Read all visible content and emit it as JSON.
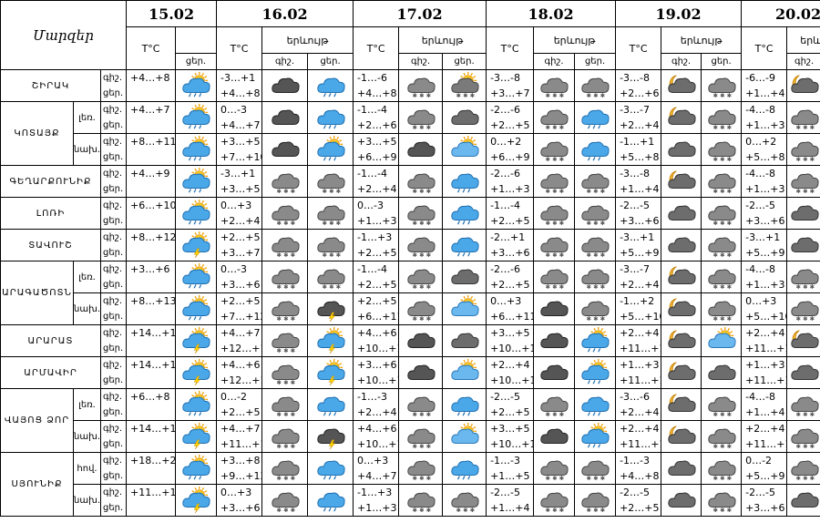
{
  "header": {
    "region_col": "Մարզեր",
    "temp_label": "T°C",
    "weather_label": "երևույթ",
    "night_short": "գիշ.",
    "day_short": "ցեր.",
    "dates": [
      "15.02",
      "16.02",
      "17.02",
      "18.02",
      "19.02",
      "20.02"
    ]
  },
  "rows": [
    {
      "region": "ՇԻՐԱԿ",
      "sub": "",
      "labels": [
        "գիշ.",
        "ցեր."
      ],
      "t15": [
        "",
        "+4…+8"
      ],
      "i15": "sun-cloud-rain-icon",
      "days": [
        {
          "t": [
            "-3…+1",
            "+4…+8"
          ],
          "n": "dark-cloud-icon",
          "d": "cloud-rain-icon"
        },
        {
          "t": [
            "-1…-6",
            "+4…+8"
          ],
          "n": "cloud-snow-icon",
          "d": "sun-cloud-snow-icon"
        },
        {
          "t": [
            "-3…-8",
            "+3…+7"
          ],
          "n": "cloud-snow-icon",
          "d": "cloud-snow-icon"
        },
        {
          "t": [
            "-3…-8",
            "+2…+6"
          ],
          "n": "moon-cloud-icon",
          "d": "cloud-snow-icon"
        },
        {
          "t": [
            "-6…-9",
            "+1…+4"
          ],
          "n": "moon-cloud-icon",
          "d": "sun-cloud-icon"
        }
      ]
    },
    {
      "region": "ԿՈՏԱՅՔ",
      "sub": "լեռ.",
      "labels": [
        "գիշ.",
        "ցեր."
      ],
      "t15": [
        "",
        "+4…+7"
      ],
      "i15": "sun-cloud-rain-icon",
      "days": [
        {
          "t": [
            "0…-3",
            "+4…+7"
          ],
          "n": "dark-cloud-icon",
          "d": "cloud-rain-icon"
        },
        {
          "t": [
            "-1…-4",
            "+2…+6"
          ],
          "n": "cloud-snow-icon",
          "d": "cloud-icon"
        },
        {
          "t": [
            "-2…-6",
            "+2…+5"
          ],
          "n": "cloud-snow-icon",
          "d": "cloud-rain-icon"
        },
        {
          "t": [
            "-3…-7",
            "+2…+4"
          ],
          "n": "moon-cloud-icon",
          "d": "cloud-snow-icon"
        },
        {
          "t": [
            "-4…-8",
            "+1…+3"
          ],
          "n": "cloud-snow-icon",
          "d": "cloud-snow-icon"
        }
      ]
    },
    {
      "region": "",
      "sub": "նախ.",
      "labels": [
        "գիշ.",
        "ցեր."
      ],
      "t15": [
        "",
        "+8…+11"
      ],
      "i15": "sun-cloud-rain-icon",
      "days": [
        {
          "t": [
            "+3…+5",
            "+7…+10"
          ],
          "n": "dark-cloud-icon",
          "d": "sun-cloud-rain-icon"
        },
        {
          "t": [
            "+3…+5",
            "+6…+9"
          ],
          "n": "dark-cloud-icon",
          "d": "sun-cloud-icon"
        },
        {
          "t": [
            "0…+2",
            "+6…+9"
          ],
          "n": "cloud-snow-icon",
          "d": "cloud-rain-icon"
        },
        {
          "t": [
            "-1…+1",
            "+5…+8"
          ],
          "n": "cloud-icon",
          "d": "cloud-snow-icon"
        },
        {
          "t": [
            "0…+2",
            "+5…+8"
          ],
          "n": "cloud-snow-icon",
          "d": "cloud-rain-icon"
        }
      ]
    },
    {
      "region": "ԳԵՂԱՐՔՈՒՆԻՔ",
      "sub": "",
      "labels": [
        "գիշ.",
        "ցեր."
      ],
      "t15": [
        "",
        "+4…+9"
      ],
      "i15": "sun-cloud-rain-icon",
      "days": [
        {
          "t": [
            "-3…+1",
            "+3…+5"
          ],
          "n": "cloud-snow-icon",
          "d": "cloud-snow-icon"
        },
        {
          "t": [
            "-1…-4",
            "+2…+4"
          ],
          "n": "cloud-snow-icon",
          "d": "cloud-rain-icon"
        },
        {
          "t": [
            "-2…-6",
            "+1…+3"
          ],
          "n": "cloud-snow-icon",
          "d": "cloud-snow-icon"
        },
        {
          "t": [
            "-3…-8",
            "+1…+4"
          ],
          "n": "moon-cloud-icon",
          "d": "cloud-snow-icon"
        },
        {
          "t": [
            "-4…-8",
            "+1…+3"
          ],
          "n": "cloud-snow-icon",
          "d": "cloud-snow-icon"
        }
      ]
    },
    {
      "region": "ԼՈՌԻ",
      "sub": "",
      "labels": [
        "գիշ.",
        "ցեր."
      ],
      "t15": [
        "",
        "+6…+10"
      ],
      "i15": "sun-cloud-rain-icon",
      "days": [
        {
          "t": [
            "0…+3",
            "+2…+4"
          ],
          "n": "cloud-snow-icon",
          "d": "cloud-snow-icon"
        },
        {
          "t": [
            "0…-3",
            "+1…+3"
          ],
          "n": "cloud-snow-icon",
          "d": "cloud-rain-icon"
        },
        {
          "t": [
            "-1…-4",
            "+2…+5"
          ],
          "n": "cloud-snow-icon",
          "d": "cloud-snow-icon"
        },
        {
          "t": [
            "-2…-5",
            "+3…+6"
          ],
          "n": "cloud-icon",
          "d": "cloud-snow-icon"
        },
        {
          "t": [
            "-2…-5",
            "+3…+6"
          ],
          "n": "cloud-icon",
          "d": "cloud-snow-icon"
        }
      ]
    },
    {
      "region": "ՏԱՎՈՒՇ",
      "sub": "",
      "labels": [
        "գիշ.",
        "ցեր."
      ],
      "t15": [
        "",
        "+8…+12"
      ],
      "i15": "sun-cloud-storm-icon",
      "days": [
        {
          "t": [
            "+2…+5",
            "+3…+7"
          ],
          "n": "cloud-snow-icon",
          "d": "cloud-snow-icon"
        },
        {
          "t": [
            "-1…+3",
            "+2…+5"
          ],
          "n": "cloud-snow-icon",
          "d": "cloud-rain-icon"
        },
        {
          "t": [
            "-2…+1",
            "+3…+6"
          ],
          "n": "cloud-snow-icon",
          "d": "cloud-snow-icon"
        },
        {
          "t": [
            "-3…+1",
            "+5…+9"
          ],
          "n": "cloud-icon",
          "d": "cloud-snow-icon"
        },
        {
          "t": [
            "-3…+1",
            "+5…+9"
          ],
          "n": "cloud-icon",
          "d": "cloud-rain-icon"
        }
      ]
    },
    {
      "region": "ԱՐԱԳԱԾՈՏՆ",
      "sub": "լեռ.",
      "labels": [
        "գիշ.",
        "ցեր."
      ],
      "t15": [
        "",
        "+3…+6"
      ],
      "i15": "sun-cloud-rain-icon",
      "days": [
        {
          "t": [
            "0…-3",
            "+3…+6"
          ],
          "n": "cloud-snow-icon",
          "d": "cloud-snow-icon"
        },
        {
          "t": [
            "-1…-4",
            "+2…+5"
          ],
          "n": "cloud-snow-icon",
          "d": "cloud-icon"
        },
        {
          "t": [
            "-2…-6",
            "+2…+5"
          ],
          "n": "cloud-snow-icon",
          "d": "cloud-snow-icon"
        },
        {
          "t": [
            "-3…-7",
            "+2…+4"
          ],
          "n": "moon-cloud-icon",
          "d": "cloud-snow-icon"
        },
        {
          "t": [
            "-4…-8",
            "+1…+3"
          ],
          "n": "cloud-snow-icon",
          "d": "cloud-rain-icon"
        }
      ]
    },
    {
      "region": "",
      "sub": "նախ.",
      "labels": [
        "գիշ.",
        "ցեր."
      ],
      "t15": [
        "",
        "+8…+13"
      ],
      "i15": "sun-cloud-rain-icon",
      "days": [
        {
          "t": [
            "+2…+5",
            "+7…+12"
          ],
          "n": "cloud-snow-icon",
          "d": "cloud-storm-icon"
        },
        {
          "t": [
            "+2…+5",
            "+6…+11"
          ],
          "n": "cloud-snow-icon",
          "d": "sun-cloud-icon"
        },
        {
          "t": [
            "0…+3",
            "+6…+11"
          ],
          "n": "dark-cloud-icon",
          "d": "cloud-snow-icon"
        },
        {
          "t": [
            "-1…+2",
            "+5…+10"
          ],
          "n": "moon-cloud-icon",
          "d": "cloud-snow-icon"
        },
        {
          "t": [
            "0…+3",
            "+5…+10"
          ],
          "n": "cloud-snow-icon",
          "d": "cloud-snow-icon"
        }
      ]
    },
    {
      "region": "ԱՐԱՐԱՏ",
      "sub": "",
      "labels": [
        "գիշ.",
        "ցեր."
      ],
      "t15": [
        "",
        "+14…+17"
      ],
      "i15": "sun-cloud-storm-icon",
      "days": [
        {
          "t": [
            "+4…+7",
            "+12…+14"
          ],
          "n": "cloud-snow-icon",
          "d": "sun-cloud-storm-icon"
        },
        {
          "t": [
            "+4…+6",
            "+10…+12"
          ],
          "n": "dark-cloud-icon",
          "d": "cloud-icon"
        },
        {
          "t": [
            "+3…+5",
            "+10…+12"
          ],
          "n": "dark-cloud-icon",
          "d": "sun-cloud-rain-icon"
        },
        {
          "t": [
            "+2…+4",
            "+11…+13"
          ],
          "n": "moon-cloud-icon",
          "d": "sun-cloud-icon"
        },
        {
          "t": [
            "+2…+4",
            "+11…+13"
          ],
          "n": "moon-cloud-icon",
          "d": "sun-cloud-icon"
        }
      ]
    },
    {
      "region": "ԱՐՄԱՎԻՐ",
      "sub": "",
      "labels": [
        "գիշ.",
        "ցեր."
      ],
      "t15": [
        "",
        "+14…+16"
      ],
      "i15": "sun-cloud-storm-icon",
      "days": [
        {
          "t": [
            "+4…+6",
            "+12…+14"
          ],
          "n": "cloud-snow-icon",
          "d": "sun-cloud-storm-icon"
        },
        {
          "t": [
            "+3…+6",
            "+10…+12"
          ],
          "n": "dark-cloud-icon",
          "d": "sun-cloud-icon"
        },
        {
          "t": [
            "+2…+4",
            "+10…+12"
          ],
          "n": "dark-cloud-icon",
          "d": "sun-cloud-rain-icon"
        },
        {
          "t": [
            "+1…+3",
            "+11…+13"
          ],
          "n": "moon-cloud-icon",
          "d": "cloud-icon"
        },
        {
          "t": [
            "+1…+3",
            "+11…+13"
          ],
          "n": "cloud-icon",
          "d": "sun-cloud-icon"
        }
      ]
    },
    {
      "region": "ՎԱՅՈՑ ՁՈՐ",
      "sub": "լեռ.",
      "labels": [
        "գիշ.",
        "ցեր."
      ],
      "t15": [
        "",
        "+6…+8"
      ],
      "i15": "sun-cloud-rain-icon",
      "days": [
        {
          "t": [
            "0…-2",
            "+2…+5"
          ],
          "n": "cloud-snow-icon",
          "d": "cloud-rain-icon"
        },
        {
          "t": [
            "-1…-3",
            "+2…+4"
          ],
          "n": "cloud-snow-icon",
          "d": "cloud-rain-icon"
        },
        {
          "t": [
            "-2…-5",
            "+2…+5"
          ],
          "n": "cloud-snow-icon",
          "d": "cloud-rain-icon"
        },
        {
          "t": [
            "-3…-6",
            "+2…+4"
          ],
          "n": "moon-cloud-icon",
          "d": "cloud-snow-icon"
        },
        {
          "t": [
            "-4…-8",
            "+1…+4"
          ],
          "n": "cloud-snow-icon",
          "d": "cloud-rain-icon"
        }
      ]
    },
    {
      "region": "",
      "sub": "նախ.",
      "labels": [
        "գիշ.",
        "ցեր."
      ],
      "t15": [
        "",
        "+14…+17"
      ],
      "i15": "sun-cloud-storm-icon",
      "days": [
        {
          "t": [
            "+4…+7",
            "+11…+14"
          ],
          "n": "cloud-snow-icon",
          "d": "cloud-storm-icon"
        },
        {
          "t": [
            "+4…+6",
            "+10…+12"
          ],
          "n": "cloud-snow-icon",
          "d": "sun-cloud-icon"
        },
        {
          "t": [
            "+3…+5",
            "+10…+12"
          ],
          "n": "dark-cloud-icon",
          "d": "sun-cloud-rain-icon"
        },
        {
          "t": [
            "+2…+4",
            "+11…+13"
          ],
          "n": "moon-cloud-icon",
          "d": "cloud-snow-icon"
        },
        {
          "t": [
            "+2…+4",
            "+11…+13"
          ],
          "n": "cloud-snow-icon",
          "d": "sun-cloud-icon"
        }
      ]
    },
    {
      "region": "ՍՅՈՒՆԻՔ",
      "sub": "հով.",
      "labels": [
        "գիշ.",
        "ցեր."
      ],
      "t15": [
        "",
        "+18…+21"
      ],
      "i15": "sun-cloud-rain-icon",
      "days": [
        {
          "t": [
            "+3…+8",
            "+9…+13"
          ],
          "n": "cloud-snow-icon",
          "d": "cloud-rain-icon"
        },
        {
          "t": [
            "0…+3",
            "+4…+7"
          ],
          "n": "cloud-snow-icon",
          "d": "cloud-rain-icon"
        },
        {
          "t": [
            "-1…-3",
            "+1…+5"
          ],
          "n": "cloud-snow-icon",
          "d": "cloud-snow-icon"
        },
        {
          "t": [
            "-1…-3",
            "+4…+8"
          ],
          "n": "cloud-icon",
          "d": "cloud-snow-icon"
        },
        {
          "t": [
            "0…-2",
            "+5…+9"
          ],
          "n": "cloud-snow-icon",
          "d": "cloud-rain-icon"
        }
      ]
    },
    {
      "region": "",
      "sub": "նախ.",
      "labels": [
        "գիշ.",
        "ցեր."
      ],
      "t15": [
        "",
        "+11…+14"
      ],
      "i15": "sun-cloud-storm-icon",
      "days": [
        {
          "t": [
            "0…+3",
            "+3…+6"
          ],
          "n": "cloud-snow-icon",
          "d": "cloud-rain-icon"
        },
        {
          "t": [
            "-1…+3",
            "+1…+3"
          ],
          "n": "cloud-snow-icon",
          "d": "cloud-snow-icon"
        },
        {
          "t": [
            "-2…-5",
            "+1…+4"
          ],
          "n": "cloud-snow-icon",
          "d": "cloud-snow-icon"
        },
        {
          "t": [
            "-2…-5",
            "+2…+5"
          ],
          "n": "cloud-icon",
          "d": "cloud-snow-icon"
        },
        {
          "t": [
            "-2…-5",
            "+3…+6"
          ],
          "n": "cloud-icon",
          "d": "cloud-rain-icon"
        }
      ]
    }
  ]
}
